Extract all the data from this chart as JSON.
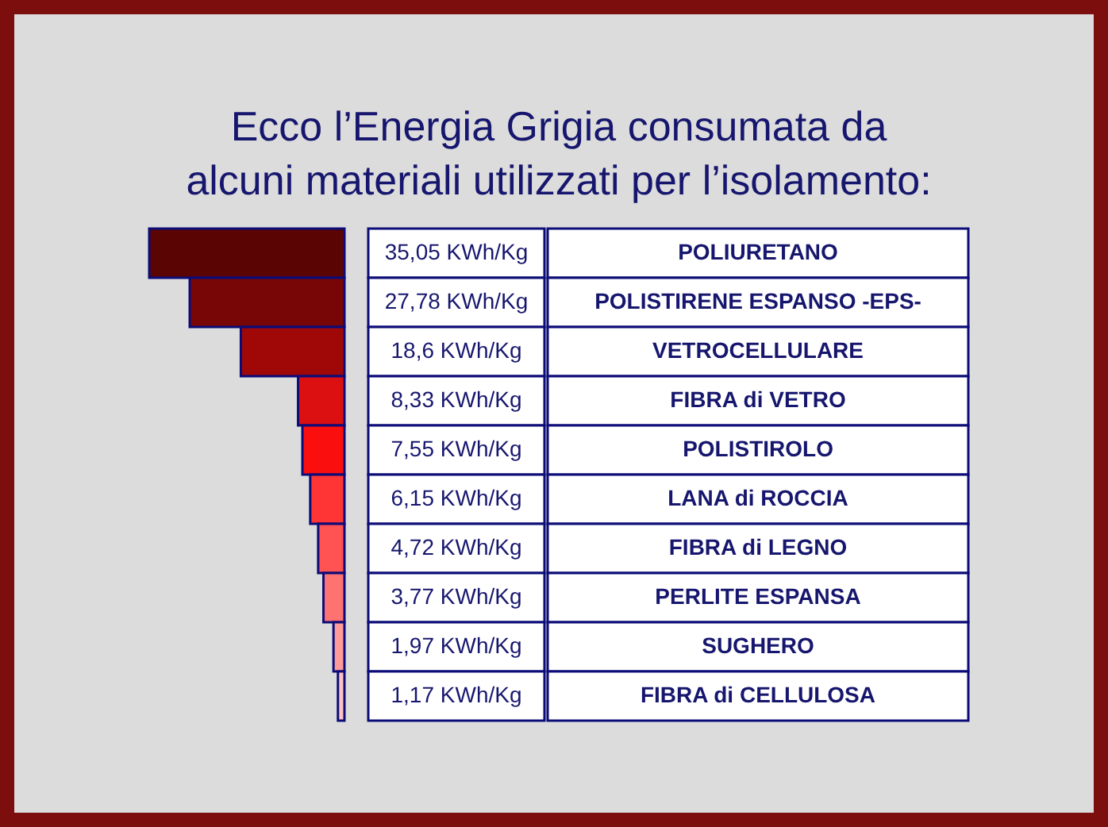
{
  "chart_data": {
    "type": "bar",
    "orientation": "horizontal",
    "title": "Ecco l’Energia Grigia consumata da\nalcuni materiali utilizzati per l’isolamento:",
    "categories": [
      "POLIURETANO",
      "POLISTIRENE ESPANSO -EPS-",
      "VETROCELLULARE",
      "FIBRA di VETRO",
      "POLISTIROLO",
      "LANA di ROCCIA",
      "FIBRA di LEGNO",
      "PERLITE ESPANSA",
      "SUGHERO",
      "FIBRA di CELLULOSA"
    ],
    "values": [
      35.05,
      27.78,
      18.6,
      8.33,
      7.55,
      6.15,
      4.72,
      3.77,
      1.97,
      1.17
    ],
    "colors": [
      "#5a0404",
      "#780606",
      "#a00808",
      "#dc1010",
      "#fa0e0e",
      "#ff3434",
      "#ff5252",
      "#ff7272",
      "#ff9a9a",
      "#ffc2c2"
    ],
    "value_labels": [
      "35,05 KWh/Kg",
      "27,78 KWh/Kg",
      "18,6 KWh/Kg",
      "8,33 KWh/Kg",
      "7,55 KWh/Kg",
      "6,15 KWh/Kg",
      "4,72 KWh/Kg",
      "3,77 KWh/Kg",
      "1,97 KWh/Kg",
      "1,17 KWh/Kg"
    ]
  }
}
